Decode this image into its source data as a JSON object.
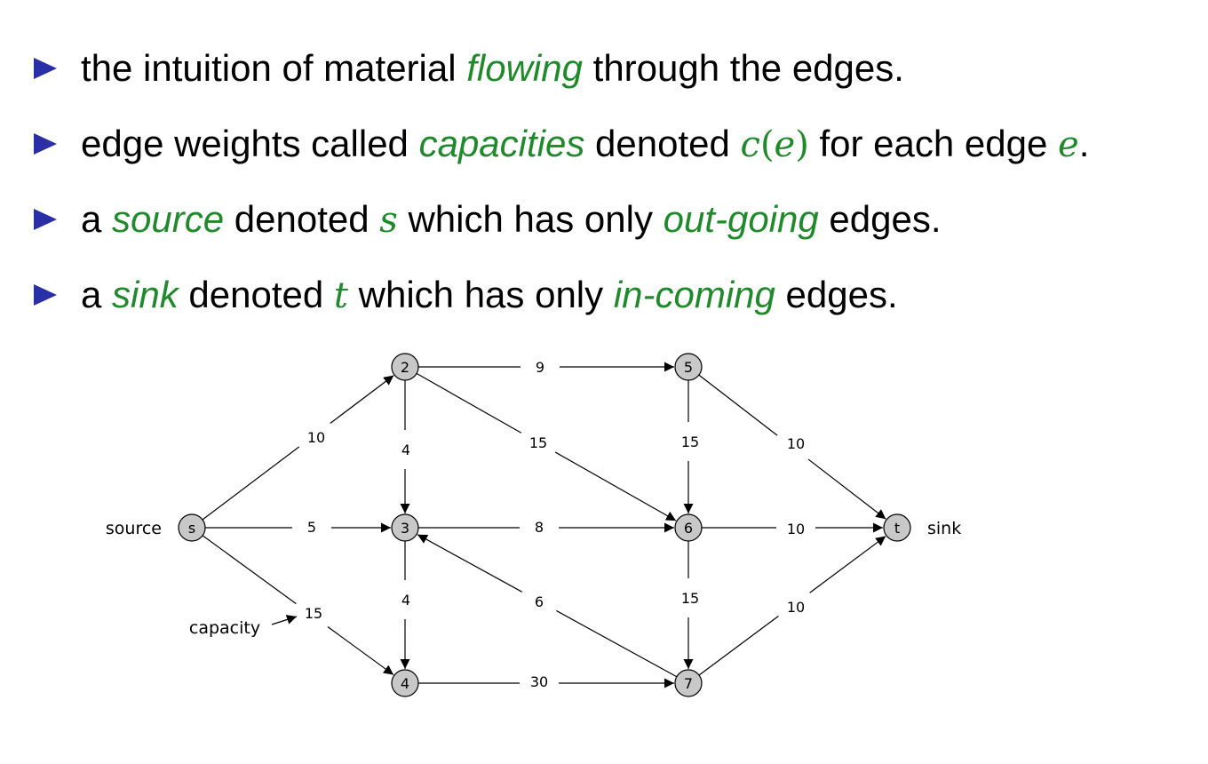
{
  "bullets": [
    {
      "parts": [
        {
          "text": "the intuition of material ",
          "style": "plain"
        },
        {
          "text": "flowing",
          "style": "em"
        },
        {
          "text": " through the edges.",
          "style": "plain"
        }
      ]
    },
    {
      "parts": [
        {
          "text": "edge weights called ",
          "style": "plain"
        },
        {
          "text": "capacities",
          "style": "em"
        },
        {
          "text": " denoted ",
          "style": "plain"
        },
        {
          "text": "c",
          "style": "math"
        },
        {
          "text": "(",
          "style": "mathp"
        },
        {
          "text": "e",
          "style": "math"
        },
        {
          "text": ")",
          "style": "mathp"
        },
        {
          "text": " for each edge ",
          "style": "plain"
        },
        {
          "text": "e",
          "style": "math"
        },
        {
          "text": ".",
          "style": "plain"
        }
      ]
    },
    {
      "parts": [
        {
          "text": "a ",
          "style": "plain"
        },
        {
          "text": "source",
          "style": "em"
        },
        {
          "text": " denoted ",
          "style": "plain"
        },
        {
          "text": "s",
          "style": "math"
        },
        {
          "text": " which has only ",
          "style": "plain"
        },
        {
          "text": "out-going",
          "style": "em"
        },
        {
          "text": " edges.",
          "style": "plain"
        }
      ]
    },
    {
      "parts": [
        {
          "text": "a ",
          "style": "plain"
        },
        {
          "text": "sink",
          "style": "em"
        },
        {
          "text": " denoted ",
          "style": "plain"
        },
        {
          "text": "t",
          "style": "math"
        },
        {
          "text": " which has only ",
          "style": "plain"
        },
        {
          "text": "in-coming",
          "style": "em"
        },
        {
          "text": " edges.",
          "style": "plain"
        }
      ]
    }
  ],
  "colors": {
    "bullet_marker": "#2b2fa6",
    "emphasis": "#1f8a2a",
    "node_fill": "#c8c8c8",
    "edge": "#000000"
  },
  "graph": {
    "nodes": [
      {
        "id": "s",
        "label": "s"
      },
      {
        "id": "2",
        "label": "2"
      },
      {
        "id": "3",
        "label": "3"
      },
      {
        "id": "4",
        "label": "4"
      },
      {
        "id": "5",
        "label": "5"
      },
      {
        "id": "6",
        "label": "6"
      },
      {
        "id": "7",
        "label": "7"
      },
      {
        "id": "t",
        "label": "t"
      }
    ],
    "edges": [
      {
        "from": "s",
        "to": "2",
        "capacity": "10"
      },
      {
        "from": "s",
        "to": "3",
        "capacity": "5"
      },
      {
        "from": "s",
        "to": "4",
        "capacity": "15"
      },
      {
        "from": "2",
        "to": "5",
        "capacity": "9"
      },
      {
        "from": "2",
        "to": "3",
        "capacity": "4"
      },
      {
        "from": "2",
        "to": "6",
        "capacity": "15"
      },
      {
        "from": "3",
        "to": "6",
        "capacity": "8"
      },
      {
        "from": "3",
        "to": "4",
        "capacity": "4"
      },
      {
        "from": "4",
        "to": "7",
        "capacity": "30"
      },
      {
        "from": "5",
        "to": "6",
        "capacity": "15"
      },
      {
        "from": "5",
        "to": "t",
        "capacity": "10"
      },
      {
        "from": "6",
        "to": "t",
        "capacity": "10"
      },
      {
        "from": "6",
        "to": "7",
        "capacity": "15"
      },
      {
        "from": "7",
        "to": "3",
        "capacity": "6"
      },
      {
        "from": "7",
        "to": "t",
        "capacity": "10"
      }
    ],
    "annotations": {
      "source_label": "source",
      "sink_label": "sink",
      "capacity_label": "capacity"
    }
  }
}
